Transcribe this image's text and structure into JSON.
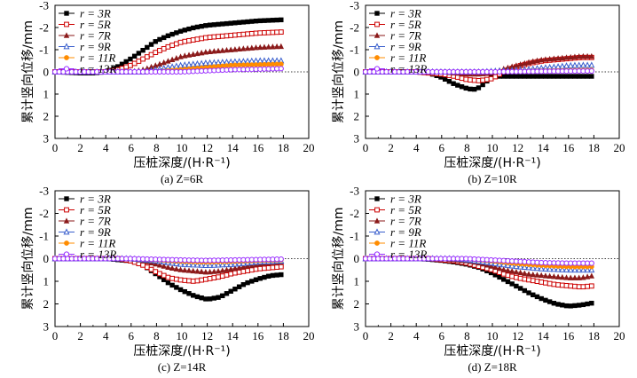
{
  "figure": {
    "xlabel": "压桩深度/(H·R⁻¹)",
    "ylabel": "累计竖向位移/mm",
    "x_ticks": [
      "0",
      "2",
      "4",
      "6",
      "8",
      "10",
      "12",
      "14",
      "16",
      "18",
      "20"
    ],
    "y_ticks": [
      "-3",
      "-2",
      "-1",
      "0",
      "1",
      "2",
      "3"
    ],
    "legend": [
      "r = 3R",
      "r = 5R",
      "r = 7R",
      "r = 9R",
      "r = 11R",
      "r = 13R"
    ]
  },
  "series_styles": [
    {
      "name": "r = 3R",
      "color": "#000000",
      "marker": "filled-square"
    },
    {
      "name": "r = 5R",
      "color": "#cc0000",
      "marker": "open-square"
    },
    {
      "name": "r = 7R",
      "color": "#8b1a1a",
      "marker": "filled-triangle"
    },
    {
      "name": "r = 9R",
      "color": "#3a5fcd",
      "marker": "open-triangle"
    },
    {
      "name": "r = 11R",
      "color": "#ff8c00",
      "marker": "filled-circle"
    },
    {
      "name": "r = 13R",
      "color": "#9b30ff",
      "marker": "open-circle"
    }
  ],
  "chart_data": [
    {
      "type": "scatter",
      "caption": "(a) Z=6R",
      "xlim": [
        0,
        20
      ],
      "ylim": [
        -3,
        3
      ],
      "x_range": [
        0,
        18
      ],
      "step": 0.33,
      "series": [
        {
          "name": "r = 3R",
          "x": [
            0,
            2,
            3,
            4,
            5,
            6,
            7,
            8,
            9,
            10,
            11,
            12,
            14,
            16,
            18
          ],
          "y": [
            0,
            0.05,
            0.05,
            0,
            -0.25,
            -0.6,
            -1.0,
            -1.4,
            -1.65,
            -1.85,
            -2.0,
            -2.1,
            -2.2,
            -2.3,
            -2.35
          ]
        },
        {
          "name": "r = 5R",
          "x": [
            0,
            4,
            5,
            6,
            7,
            8,
            9,
            10,
            12,
            14,
            16,
            18
          ],
          "y": [
            0,
            0,
            -0.1,
            -0.3,
            -0.6,
            -0.9,
            -1.15,
            -1.35,
            -1.55,
            -1.65,
            -1.75,
            -1.8
          ]
        },
        {
          "name": "r = 7R",
          "x": [
            0,
            6,
            7,
            8,
            9,
            10,
            12,
            14,
            16,
            18
          ],
          "y": [
            0,
            0,
            -0.1,
            -0.3,
            -0.5,
            -0.7,
            -0.9,
            -1.0,
            -1.1,
            -1.15
          ]
        },
        {
          "name": "r = 9R",
          "x": [
            0,
            7,
            8,
            9,
            10,
            12,
            14,
            16,
            18
          ],
          "y": [
            0,
            0,
            -0.1,
            -0.2,
            -0.3,
            -0.4,
            -0.45,
            -0.5,
            -0.5
          ]
        },
        {
          "name": "r = 11R",
          "x": [
            0,
            8,
            9,
            10,
            12,
            14,
            16,
            18
          ],
          "y": [
            0,
            0,
            -0.05,
            -0.1,
            -0.2,
            -0.3,
            -0.32,
            -0.35
          ]
        },
        {
          "name": "r = 13R",
          "x": [
            0,
            10,
            12,
            14,
            16,
            18
          ],
          "y": [
            0,
            0,
            -0.05,
            -0.1,
            -0.12,
            -0.15
          ]
        }
      ]
    },
    {
      "type": "scatter",
      "caption": "(b) Z=10R",
      "xlim": [
        0,
        20
      ],
      "ylim": [
        -3,
        3
      ],
      "x_range": [
        0,
        18
      ],
      "step": 0.33,
      "series": [
        {
          "name": "r = 3R",
          "x": [
            0,
            4,
            5,
            6,
            7,
            8,
            8.5,
            9,
            9.5,
            10
          ],
          "y": [
            0,
            0,
            0.05,
            0.25,
            0.55,
            0.75,
            0.8,
            0.7,
            0.45,
            0.2
          ]
        },
        {
          "name": "r = 5R",
          "x": [
            0,
            4,
            5,
            6,
            7,
            8,
            9,
            10,
            11,
            12,
            13,
            14,
            15,
            16,
            17,
            18
          ],
          "y": [
            0,
            0,
            0.05,
            0.1,
            0.2,
            0.35,
            0.4,
            0.3,
            -0.05,
            -0.25,
            -0.4,
            -0.5,
            -0.55,
            -0.6,
            -0.65,
            -0.65
          ]
        },
        {
          "name": "r = 7R",
          "x": [
            0,
            6,
            7,
            8,
            9,
            10,
            11,
            12,
            13,
            14,
            15,
            16,
            17,
            18
          ],
          "y": [
            0,
            0,
            0.05,
            0.1,
            0.1,
            0.05,
            -0.15,
            -0.3,
            -0.45,
            -0.55,
            -0.6,
            -0.65,
            -0.7,
            -0.7
          ]
        },
        {
          "name": "r = 9R",
          "x": [
            0,
            8,
            9,
            10,
            11,
            12,
            13,
            14,
            15,
            16,
            17,
            18
          ],
          "y": [
            0,
            0,
            0,
            -0.03,
            -0.05,
            -0.08,
            -0.12,
            -0.18,
            -0.22,
            -0.28,
            -0.3,
            -0.3
          ]
        },
        {
          "name": "r = 11R",
          "x": [
            0,
            10,
            12,
            14,
            16,
            18
          ],
          "y": [
            0,
            0,
            -0.02,
            -0.04,
            -0.06,
            -0.08
          ]
        },
        {
          "name": "r = 13R",
          "x": [
            0,
            10,
            12,
            14,
            16,
            18
          ],
          "y": [
            0,
            0,
            -0.01,
            -0.02,
            -0.03,
            -0.04
          ]
        }
      ]
    },
    {
      "type": "scatter",
      "caption": "(c) Z=14R",
      "xlim": [
        0,
        20
      ],
      "ylim": [
        -3,
        3
      ],
      "x_range": [
        0,
        18
      ],
      "step": 0.33,
      "series": [
        {
          "name": "r = 3R",
          "x": [
            0,
            4,
            5,
            6,
            7,
            8,
            9,
            10,
            11,
            12,
            13,
            14,
            15,
            16,
            17,
            18
          ],
          "y": [
            0,
            0,
            0.05,
            0.1,
            0.3,
            0.7,
            1.1,
            1.4,
            1.65,
            1.8,
            1.7,
            1.4,
            1.1,
            0.9,
            0.75,
            0.7
          ]
        },
        {
          "name": "r = 5R",
          "x": [
            0,
            5,
            6,
            7,
            8,
            9,
            10,
            11,
            12,
            13,
            14,
            15,
            16,
            17,
            18
          ],
          "y": [
            0,
            0,
            0.1,
            0.3,
            0.6,
            0.85,
            0.95,
            1.0,
            0.9,
            0.8,
            0.65,
            0.55,
            0.45,
            0.4,
            0.35
          ]
        },
        {
          "name": "r = 7R",
          "x": [
            0,
            6,
            7,
            8,
            9,
            10,
            11,
            12,
            13,
            14,
            15,
            16,
            17,
            18
          ],
          "y": [
            0,
            0,
            0.1,
            0.25,
            0.4,
            0.5,
            0.55,
            0.6,
            0.55,
            0.45,
            0.35,
            0.25,
            0.18,
            0.15
          ]
        },
        {
          "name": "r = 9R",
          "x": [
            0,
            6,
            8,
            10,
            12,
            14,
            16,
            18
          ],
          "y": [
            0,
            0,
            0.1,
            0.25,
            0.3,
            0.25,
            0.15,
            0.1
          ]
        },
        {
          "name": "r = 11R",
          "x": [
            0,
            6,
            8,
            10,
            12,
            14,
            16,
            18
          ],
          "y": [
            0,
            0,
            0.05,
            0.12,
            0.15,
            0.12,
            0.08,
            0.05
          ]
        },
        {
          "name": "r = 13R",
          "x": [
            0,
            6,
            8,
            10,
            12,
            14,
            16,
            18
          ],
          "y": [
            0,
            0,
            0.03,
            0.06,
            0.08,
            0.06,
            0.04,
            0.02
          ]
        }
      ]
    },
    {
      "type": "scatter",
      "caption": "(d) Z=18R",
      "xlim": [
        0,
        20
      ],
      "ylim": [
        -3,
        3
      ],
      "x_range": [
        0,
        18
      ],
      "step": 0.33,
      "series": [
        {
          "name": "r = 3R",
          "x": [
            0,
            4,
            5,
            6,
            7,
            8,
            9,
            10,
            11,
            12,
            13,
            14,
            15,
            16,
            17,
            18
          ],
          "y": [
            0,
            0,
            0.03,
            0.08,
            0.15,
            0.25,
            0.4,
            0.65,
            0.95,
            1.25,
            1.55,
            1.8,
            2.0,
            2.1,
            2.05,
            1.95
          ]
        },
        {
          "name": "r = 5R",
          "x": [
            0,
            5,
            6,
            7,
            8,
            9,
            10,
            11,
            12,
            13,
            14,
            15,
            16,
            17,
            18
          ],
          "y": [
            0,
            0,
            0.05,
            0.1,
            0.2,
            0.35,
            0.5,
            0.7,
            0.85,
            0.95,
            1.05,
            1.15,
            1.2,
            1.25,
            1.2
          ]
        },
        {
          "name": "r = 7R",
          "x": [
            0,
            6,
            8,
            9,
            10,
            11,
            12,
            13,
            14,
            15,
            16,
            17,
            18
          ],
          "y": [
            0,
            0,
            0.1,
            0.2,
            0.35,
            0.5,
            0.6,
            0.7,
            0.75,
            0.8,
            0.85,
            0.85,
            0.75
          ]
        },
        {
          "name": "r = 9R",
          "x": [
            0,
            7,
            8,
            10,
            12,
            14,
            16,
            18
          ],
          "y": [
            0,
            0,
            0.05,
            0.2,
            0.35,
            0.45,
            0.5,
            0.5
          ]
        },
        {
          "name": "r = 11R",
          "x": [
            0,
            8,
            10,
            12,
            14,
            16,
            18
          ],
          "y": [
            0,
            0,
            0.1,
            0.22,
            0.3,
            0.35,
            0.35
          ]
        },
        {
          "name": "r = 13R",
          "x": [
            0,
            8,
            10,
            12,
            14,
            16,
            18
          ],
          "y": [
            0,
            0,
            0.06,
            0.12,
            0.18,
            0.2,
            0.2
          ]
        }
      ]
    }
  ]
}
